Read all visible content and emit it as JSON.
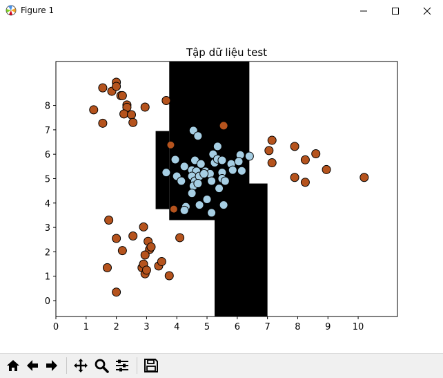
{
  "window": {
    "title": "Figure 1",
    "icons": {
      "app": "matplotlib-icon",
      "minimize": "minimize-icon",
      "maximize": "maximize-icon",
      "close": "close-icon"
    }
  },
  "toolbar": {
    "buttons": [
      {
        "name": "home-button",
        "icon": "home-icon"
      },
      {
        "name": "back-button",
        "icon": "arrow-left-icon"
      },
      {
        "name": "forward-button",
        "icon": "arrow-right-icon"
      },
      {
        "name": "pan-button",
        "icon": "move-icon"
      },
      {
        "name": "zoom-button",
        "icon": "magnifier-icon"
      },
      {
        "name": "subplots-button",
        "icon": "sliders-icon"
      },
      {
        "name": "save-button",
        "icon": "floppy-disk-icon"
      }
    ]
  },
  "colors": {
    "class_a": "#b5531d",
    "class_b": "#a6cee3",
    "region": "#000000",
    "edge": "#000000"
  },
  "chart_data": {
    "type": "scatter",
    "title": "Tập dữ liệu test",
    "xlabel": "",
    "ylabel": "",
    "xlim": [
      0,
      11.3
    ],
    "ylim": [
      -0.65,
      9.8
    ],
    "xticks": [
      0,
      1,
      2,
      3,
      4,
      5,
      6,
      7,
      8,
      9,
      10
    ],
    "yticks": [
      0,
      1,
      2,
      3,
      4,
      5,
      6,
      7,
      8
    ],
    "grid": false,
    "legend": "none",
    "decision_regions": [
      {
        "x": [
          3.75,
          6.4
        ],
        "y": [
          3.3,
          9.8
        ]
      },
      {
        "x": [
          3.3,
          3.75
        ],
        "y": [
          3.75,
          6.95
        ]
      },
      {
        "x": [
          5.25,
          7.0
        ],
        "y": [
          -0.65,
          4.8
        ]
      },
      {
        "x": [
          6.4,
          7.0
        ],
        "y": [
          4.8,
          4.8
        ]
      }
    ],
    "series": [
      {
        "class": "outer",
        "color": "#b5531d",
        "points": [
          [
            1.55,
            8.72
          ],
          [
            1.85,
            8.58
          ],
          [
            2.0,
            8.95
          ],
          [
            2.0,
            8.78
          ],
          [
            2.15,
            8.4
          ],
          [
            2.2,
            8.4
          ],
          [
            1.25,
            7.82
          ],
          [
            1.55,
            7.27
          ],
          [
            2.35,
            8.02
          ],
          [
            2.35,
            7.92
          ],
          [
            2.25,
            7.65
          ],
          [
            2.5,
            7.62
          ],
          [
            2.55,
            7.3
          ],
          [
            2.95,
            7.93
          ],
          [
            3.65,
            8.2
          ],
          [
            5.55,
            7.17
          ],
          [
            1.75,
            3.3
          ],
          [
            2.0,
            2.55
          ],
          [
            2.2,
            2.05
          ],
          [
            2.55,
            2.65
          ],
          [
            2.9,
            3.02
          ],
          [
            3.05,
            2.43
          ],
          [
            3.1,
            2.1
          ],
          [
            3.15,
            2.2
          ],
          [
            2.95,
            1.87
          ],
          [
            1.7,
            1.35
          ],
          [
            2.85,
            1.35
          ],
          [
            2.9,
            1.5
          ],
          [
            2.95,
            1.1
          ],
          [
            3.0,
            1.25
          ],
          [
            3.4,
            1.42
          ],
          [
            3.5,
            1.6
          ],
          [
            3.75,
            1.02
          ],
          [
            4.1,
            2.58
          ],
          [
            2.0,
            0.35
          ],
          [
            7.15,
            6.57
          ],
          [
            7.05,
            6.15
          ],
          [
            7.15,
            5.65
          ],
          [
            7.9,
            6.32
          ],
          [
            8.25,
            5.77
          ],
          [
            8.6,
            6.02
          ],
          [
            8.95,
            5.37
          ],
          [
            7.9,
            5.05
          ],
          [
            8.25,
            4.85
          ],
          [
            10.2,
            5.05
          ]
        ]
      },
      {
        "class": "inner",
        "color": "#a6cee3",
        "points": [
          [
            4.55,
            6.97
          ],
          [
            4.7,
            6.75
          ],
          [
            5.35,
            6.32
          ],
          [
            5.2,
            6.0
          ],
          [
            6.1,
            5.97
          ],
          [
            6.4,
            5.92
          ],
          [
            3.95,
            5.78
          ],
          [
            4.6,
            5.75
          ],
          [
            4.8,
            5.6
          ],
          [
            5.25,
            5.65
          ],
          [
            5.35,
            5.8
          ],
          [
            5.5,
            5.75
          ],
          [
            5.8,
            5.6
          ],
          [
            6.05,
            5.7
          ],
          [
            4.25,
            5.5
          ],
          [
            4.5,
            5.35
          ],
          [
            4.65,
            5.3
          ],
          [
            4.95,
            5.3
          ],
          [
            5.1,
            5.2
          ],
          [
            5.5,
            5.25
          ],
          [
            5.85,
            5.35
          ],
          [
            6.15,
            5.32
          ],
          [
            3.65,
            5.25
          ],
          [
            4.0,
            5.1
          ],
          [
            4.5,
            5.1
          ],
          [
            4.6,
            4.9
          ],
          [
            4.75,
            5.1
          ],
          [
            4.9,
            5.2
          ],
          [
            5.15,
            4.9
          ],
          [
            5.5,
            5.0
          ],
          [
            5.6,
            4.9
          ],
          [
            4.15,
            4.9
          ],
          [
            4.55,
            4.7
          ],
          [
            4.7,
            4.8
          ],
          [
            5.4,
            4.6
          ],
          [
            4.5,
            4.4
          ],
          [
            4.3,
            3.85
          ],
          [
            4.75,
            3.92
          ],
          [
            5.0,
            4.15
          ],
          [
            4.25,
            3.7
          ],
          [
            5.55,
            3.92
          ],
          [
            5.15,
            3.6
          ]
        ]
      }
    ],
    "highlighted_points": [
      {
        "x": 3.8,
        "y": 6.38,
        "color": "#b5531d",
        "class": "outer"
      },
      {
        "x": 3.9,
        "y": 3.75,
        "color": "#b5531d",
        "class": "outer"
      }
    ]
  }
}
